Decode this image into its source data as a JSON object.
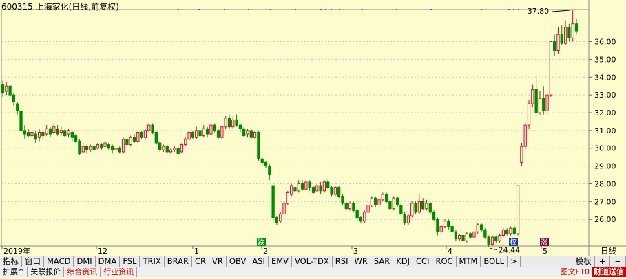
{
  "header": {
    "title": "600315 上海家化(日线,前复权)"
  },
  "period_label": "日线",
  "chart_data": {
    "type": "candlestick",
    "title": "600315 上海家化(日线,前复权)",
    "ylim": [
      24.5,
      37.8
    ],
    "y_ticks": [
      26.0,
      27.0,
      28.0,
      29.0,
      30.0,
      31.0,
      32.0,
      33.0,
      34.0,
      35.0,
      36.0
    ],
    "x_labels": [
      "2019年",
      "12",
      "1",
      "2",
      "3",
      "4",
      "5"
    ],
    "annotations": {
      "high": "37.80",
      "low": "24.44",
      "badges": [
        "跌",
        "权",
        "涨"
      ]
    },
    "candles": [
      [
        33.6,
        33.1,
        33.8,
        32.9
      ],
      [
        33.2,
        33.5,
        33.7,
        33.0
      ],
      [
        33.5,
        33.0,
        33.6,
        32.8
      ],
      [
        33.0,
        32.6,
        33.1,
        32.4
      ],
      [
        32.5,
        32.1,
        32.6,
        31.9
      ],
      [
        32.1,
        31.0,
        32.3,
        30.8
      ],
      [
        31.0,
        30.8,
        31.3,
        30.5
      ],
      [
        30.9,
        30.7,
        31.1,
        30.6
      ],
      [
        30.7,
        30.9,
        31.0,
        30.5
      ],
      [
        30.8,
        30.5,
        31.0,
        30.3
      ],
      [
        30.6,
        30.9,
        31.1,
        30.4
      ],
      [
        30.9,
        30.7,
        31.1,
        30.5
      ],
      [
        30.8,
        31.1,
        31.3,
        30.7
      ],
      [
        31.1,
        30.8,
        31.2,
        30.6
      ],
      [
        30.9,
        31.2,
        31.4,
        30.8
      ],
      [
        31.1,
        30.8,
        31.3,
        30.7
      ],
      [
        30.9,
        31.0,
        31.2,
        30.7
      ],
      [
        31.0,
        30.7,
        31.1,
        30.6
      ],
      [
        30.8,
        31.0,
        31.1,
        30.6
      ],
      [
        30.9,
        30.6,
        31.0,
        30.4
      ],
      [
        30.7,
        30.4,
        30.8,
        30.3
      ],
      [
        30.4,
        29.7,
        30.5,
        29.6
      ],
      [
        29.8,
        30.1,
        30.3,
        29.7
      ],
      [
        30.1,
        29.9,
        30.2,
        29.7
      ],
      [
        29.9,
        30.1,
        30.2,
        29.8
      ],
      [
        30.1,
        29.9,
        30.2,
        29.8
      ],
      [
        30.0,
        30.2,
        30.3,
        29.9
      ],
      [
        30.2,
        30.0,
        30.3,
        29.9
      ],
      [
        30.1,
        30.3,
        30.4,
        30.0
      ],
      [
        30.2,
        30.0,
        30.3,
        29.9
      ],
      [
        30.1,
        29.9,
        30.2,
        29.7
      ],
      [
        29.9,
        30.0,
        30.1,
        29.8
      ],
      [
        30.0,
        29.8,
        30.1,
        29.7
      ],
      [
        29.8,
        30.5,
        30.6,
        29.7
      ],
      [
        30.5,
        30.2,
        30.6,
        30.0
      ],
      [
        30.2,
        30.6,
        30.7,
        30.1
      ],
      [
        30.6,
        30.4,
        30.8,
        30.3
      ],
      [
        30.4,
        30.9,
        31.0,
        30.3
      ],
      [
        30.9,
        30.6,
        31.0,
        30.5
      ],
      [
        30.6,
        31.0,
        31.1,
        30.5
      ],
      [
        31.0,
        31.3,
        31.4,
        30.9
      ],
      [
        31.3,
        30.9,
        31.4,
        30.8
      ],
      [
        30.9,
        30.3,
        31.0,
        30.2
      ],
      [
        30.3,
        29.9,
        30.4,
        29.8
      ],
      [
        29.9,
        30.1,
        30.2,
        29.8
      ],
      [
        30.1,
        29.8,
        30.2,
        29.7
      ],
      [
        29.8,
        29.9,
        30.0,
        29.7
      ],
      [
        29.9,
        30.0,
        30.1,
        29.8
      ],
      [
        30.0,
        29.7,
        30.1,
        29.6
      ],
      [
        29.8,
        30.2,
        30.3,
        29.7
      ],
      [
        30.2,
        30.5,
        30.6,
        30.1
      ],
      [
        30.5,
        30.9,
        31.0,
        30.4
      ],
      [
        30.9,
        30.6,
        31.0,
        30.5
      ],
      [
        30.6,
        31.0,
        31.2,
        30.5
      ],
      [
        31.0,
        30.7,
        31.1,
        30.6
      ],
      [
        30.7,
        31.1,
        31.3,
        30.6
      ],
      [
        31.1,
        30.8,
        31.2,
        30.6
      ],
      [
        30.8,
        31.3,
        31.4,
        30.7
      ],
      [
        31.3,
        31.0,
        31.4,
        30.9
      ],
      [
        31.0,
        30.6,
        31.1,
        30.5
      ],
      [
        30.6,
        31.2,
        31.3,
        30.5
      ],
      [
        31.2,
        31.7,
        31.8,
        31.1
      ],
      [
        31.7,
        31.2,
        31.9,
        31.1
      ],
      [
        31.2,
        31.6,
        31.8,
        31.1
      ],
      [
        31.6,
        31.3,
        31.9,
        31.2
      ],
      [
        31.3,
        31.1,
        31.4,
        30.9
      ],
      [
        31.1,
        30.7,
        31.2,
        30.6
      ],
      [
        30.8,
        31.0,
        31.1,
        30.6
      ],
      [
        31.0,
        30.6,
        31.1,
        30.5
      ],
      [
        30.6,
        30.9,
        31.0,
        30.5
      ],
      [
        30.9,
        29.4,
        31.0,
        29.3
      ],
      [
        29.4,
        29.2,
        29.5,
        29.0
      ],
      [
        29.2,
        29.0,
        29.3,
        28.9
      ],
      [
        29.0,
        28.5,
        29.1,
        28.2
      ],
      [
        27.9,
        26.1,
        28.0,
        25.8
      ],
      [
        26.1,
        25.8,
        26.2,
        25.7
      ],
      [
        25.9,
        26.3,
        26.4,
        25.8
      ],
      [
        26.3,
        26.9,
        27.0,
        26.2
      ],
      [
        26.9,
        27.5,
        27.6,
        26.8
      ],
      [
        27.4,
        27.9,
        28.0,
        27.3
      ],
      [
        27.8,
        27.6,
        28.1,
        27.4
      ],
      [
        27.6,
        28.0,
        28.2,
        27.5
      ],
      [
        28.0,
        27.7,
        28.2,
        27.6
      ],
      [
        27.7,
        28.1,
        28.3,
        27.6
      ],
      [
        28.1,
        27.8,
        28.2,
        27.6
      ],
      [
        27.8,
        27.5,
        27.9,
        27.4
      ],
      [
        27.6,
        27.9,
        28.0,
        27.5
      ],
      [
        27.9,
        27.6,
        28.1,
        27.4
      ],
      [
        27.6,
        28.1,
        28.2,
        27.5
      ],
      [
        28.1,
        27.8,
        28.3,
        27.7
      ],
      [
        27.8,
        27.4,
        27.9,
        27.3
      ],
      [
        27.4,
        27.8,
        27.9,
        27.3
      ],
      [
        27.8,
        27.3,
        27.9,
        27.2
      ],
      [
        27.3,
        26.9,
        27.4,
        26.8
      ],
      [
        26.9,
        26.6,
        27.0,
        26.5
      ],
      [
        26.6,
        26.9,
        27.0,
        26.5
      ],
      [
        26.9,
        26.5,
        27.0,
        26.4
      ],
      [
        26.5,
        26.1,
        26.6,
        25.9
      ],
      [
        26.1,
        25.9,
        26.2,
        25.8
      ],
      [
        25.9,
        26.4,
        26.5,
        25.8
      ],
      [
        26.4,
        26.8,
        26.9,
        26.3
      ],
      [
        26.8,
        27.2,
        27.3,
        26.7
      ],
      [
        27.2,
        26.8,
        27.3,
        26.7
      ],
      [
        26.8,
        27.1,
        27.2,
        26.7
      ],
      [
        27.1,
        27.4,
        27.5,
        27.0
      ],
      [
        27.4,
        27.0,
        27.5,
        26.9
      ],
      [
        27.0,
        26.6,
        27.1,
        26.5
      ],
      [
        26.6,
        27.2,
        27.3,
        26.5
      ],
      [
        27.2,
        26.8,
        27.3,
        26.7
      ],
      [
        26.8,
        26.3,
        26.9,
        26.2
      ],
      [
        26.3,
        25.8,
        26.4,
        25.7
      ],
      [
        25.8,
        26.2,
        26.3,
        25.7
      ],
      [
        26.2,
        26.9,
        27.0,
        26.1
      ],
      [
        26.9,
        26.4,
        27.0,
        26.3
      ],
      [
        26.4,
        27.0,
        27.4,
        26.3
      ],
      [
        27.0,
        26.6,
        27.2,
        26.5
      ],
      [
        26.6,
        26.9,
        27.1,
        26.5
      ],
      [
        26.9,
        26.4,
        27.0,
        26.3
      ],
      [
        26.4,
        26.0,
        26.5,
        25.9
      ],
      [
        26.0,
        25.3,
        26.1,
        25.1
      ],
      [
        25.3,
        25.6,
        25.7,
        25.2
      ],
      [
        25.6,
        25.9,
        26.0,
        25.5
      ],
      [
        25.9,
        25.6,
        26.0,
        25.4
      ],
      [
        25.6,
        25.3,
        25.7,
        25.2
      ],
      [
        25.3,
        24.9,
        25.4,
        24.8
      ],
      [
        24.9,
        25.1,
        25.2,
        24.8
      ],
      [
        25.1,
        24.8,
        25.2,
        24.7
      ],
      [
        24.8,
        25.2,
        25.3,
        24.7
      ],
      [
        25.2,
        25.0,
        25.3,
        24.9
      ],
      [
        25.0,
        25.3,
        25.4,
        24.9
      ],
      [
        25.3,
        25.7,
        25.8,
        25.2
      ],
      [
        25.7,
        25.4,
        25.8,
        25.3
      ],
      [
        25.4,
        25.0,
        25.5,
        24.9
      ],
      [
        25.0,
        24.6,
        25.1,
        24.44
      ],
      [
        24.6,
        25.0,
        25.1,
        24.5
      ],
      [
        25.0,
        24.8,
        25.1,
        24.7
      ],
      [
        24.8,
        25.1,
        25.2,
        24.7
      ],
      [
        25.1,
        25.4,
        25.5,
        25.0
      ],
      [
        25.4,
        25.2,
        25.5,
        25.1
      ],
      [
        25.2,
        25.5,
        25.6,
        25.1
      ],
      [
        25.5,
        25.2,
        25.7,
        25.1
      ],
      [
        25.2,
        27.9,
        27.9,
        25.1
      ],
      [
        29.2,
        30.1,
        30.3,
        29.0
      ],
      [
        30.1,
        31.3,
        31.5,
        29.9
      ],
      [
        31.3,
        32.5,
        32.7,
        31.1
      ],
      [
        32.5,
        33.3,
        33.6,
        32.3
      ],
      [
        33.3,
        32.0,
        34.1,
        31.8
      ],
      [
        32.0,
        32.8,
        33.2,
        31.9
      ],
      [
        32.8,
        32.1,
        33.5,
        31.9
      ],
      [
        32.1,
        33.0,
        33.2,
        31.8
      ],
      [
        33.0,
        36.0,
        36.0,
        32.9
      ],
      [
        36.0,
        35.5,
        36.4,
        35.2
      ],
      [
        35.5,
        36.4,
        36.8,
        35.3
      ],
      [
        36.4,
        35.9,
        36.9,
        35.8
      ],
      [
        35.9,
        36.8,
        37.2,
        35.8
      ],
      [
        36.8,
        36.2,
        37.0,
        36.0
      ],
      [
        36.2,
        37.0,
        37.8,
        36.0
      ],
      [
        37.0,
        36.6,
        37.3,
        36.4
      ]
    ]
  }
}
